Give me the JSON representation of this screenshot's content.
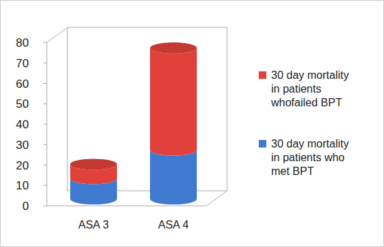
{
  "chart_data": {
    "type": "bar",
    "stacked": true,
    "categories": [
      "ASA 3",
      "ASA 4"
    ],
    "series": [
      {
        "name": "30 day mortality in patients who met BPT",
        "color": "#3f7ad0",
        "values": [
          10,
          24
        ]
      },
      {
        "name": "30 day mortality in patients whofailed BPT",
        "color": "#e0413a",
        "values": [
          7,
          50
        ]
      }
    ],
    "ylim": [
      0,
      80
    ],
    "yticks": [
      0,
      10,
      20,
      30,
      40,
      50,
      60,
      70,
      80
    ],
    "grid": false,
    "legend": "right"
  }
}
